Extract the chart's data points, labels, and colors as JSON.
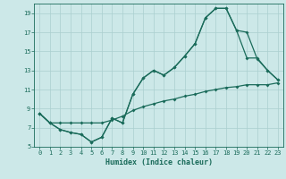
{
  "xlabel": "Humidex (Indice chaleur)",
  "bg_color": "#cce8e8",
  "grid_color": "#aacfcf",
  "line_color": "#1a6b5a",
  "xlim": [
    -0.5,
    23.5
  ],
  "ylim": [
    5,
    20
  ],
  "yticks": [
    5,
    7,
    9,
    11,
    13,
    15,
    17,
    19
  ],
  "xticks": [
    0,
    1,
    2,
    3,
    4,
    5,
    6,
    7,
    8,
    9,
    10,
    11,
    12,
    13,
    14,
    15,
    16,
    17,
    18,
    19,
    20,
    21,
    22,
    23
  ],
  "line1_x": [
    0,
    1,
    2,
    3,
    4,
    5,
    6,
    7,
    8,
    9,
    10,
    11,
    12,
    13,
    14,
    15,
    16,
    17,
    18,
    19,
    20,
    21,
    22,
    23
  ],
  "line1_y": [
    8.5,
    7.5,
    6.8,
    6.5,
    6.3,
    5.5,
    6.0,
    8.0,
    7.5,
    10.5,
    12.2,
    13.0,
    12.5,
    13.3,
    14.5,
    15.8,
    18.5,
    19.5,
    19.5,
    17.2,
    17.0,
    14.2,
    13.0,
    12.0
  ],
  "line2_x": [
    0,
    1,
    2,
    3,
    4,
    5,
    6,
    7,
    8,
    9,
    10,
    11,
    12,
    13,
    14,
    15,
    16,
    17,
    18,
    19,
    20,
    21,
    22,
    23
  ],
  "line2_y": [
    8.5,
    7.5,
    6.8,
    6.5,
    6.3,
    5.5,
    6.0,
    8.0,
    7.5,
    10.5,
    12.2,
    13.0,
    12.5,
    13.3,
    14.5,
    15.8,
    18.5,
    19.5,
    19.5,
    17.2,
    14.3,
    14.3,
    13.0,
    12.0
  ],
  "line3_x": [
    0,
    1,
    2,
    3,
    4,
    5,
    6,
    7,
    8,
    9,
    10,
    11,
    12,
    13,
    14,
    15,
    16,
    17,
    18,
    19,
    20,
    21,
    22,
    23
  ],
  "line3_y": [
    8.5,
    7.5,
    7.5,
    7.5,
    7.5,
    7.5,
    7.5,
    7.8,
    8.2,
    8.8,
    9.2,
    9.5,
    9.8,
    10.0,
    10.3,
    10.5,
    10.8,
    11.0,
    11.2,
    11.3,
    11.5,
    11.5,
    11.5,
    11.7
  ]
}
